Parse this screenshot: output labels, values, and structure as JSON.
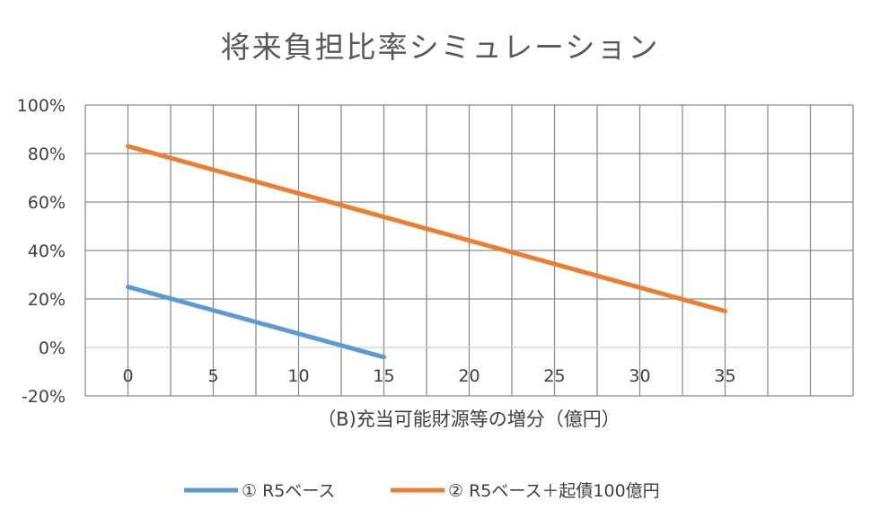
{
  "chart_data": {
    "type": "line",
    "title": "将来負担比率シミュレーション",
    "xlabel": "（B)充当可能財源等の増分（億円）",
    "ylabel": "",
    "x_tick_labels": [
      "0",
      "5",
      "10",
      "15",
      "20",
      "25",
      "30",
      "35"
    ],
    "y_tick_labels": [
      "100%",
      "80%",
      "60%",
      "40%",
      "20%",
      "0%",
      "-20%"
    ],
    "xlim": [
      -2.5,
      42.5
    ],
    "ylim": [
      -0.2,
      1.0
    ],
    "grid": true,
    "legend_position": "bottom",
    "series": [
      {
        "name": "① R5ベース",
        "color": "#5B9BD5",
        "x": [
          0,
          15
        ],
        "y": [
          0.25,
          -0.04
        ]
      },
      {
        "name": "② R5ベース＋起債100億円",
        "color": "#ED7D31",
        "x": [
          0,
          35
        ],
        "y": [
          0.83,
          0.15
        ]
      }
    ]
  }
}
